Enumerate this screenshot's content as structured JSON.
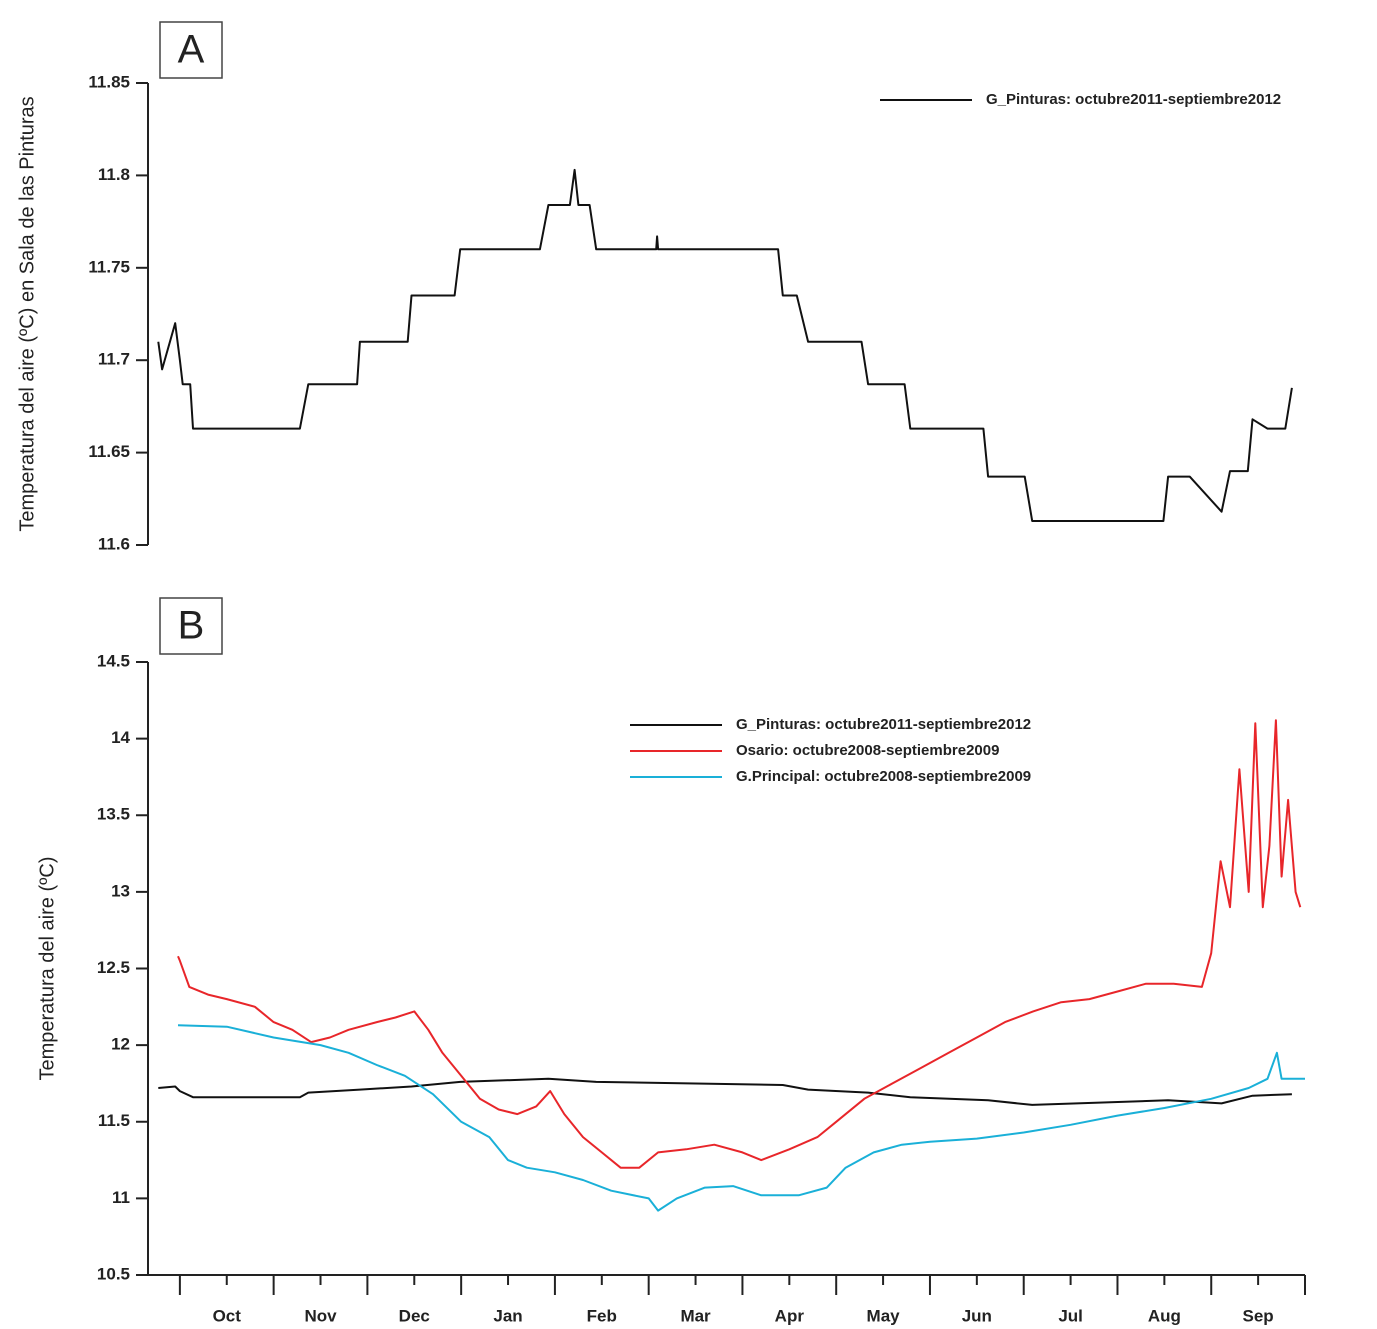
{
  "chart_data": [
    {
      "type": "line",
      "panel_label": "A",
      "y_label": "Temperatura del aire (ºC) en Sala de las Pinturas",
      "xlim": [
        -0.34,
        12
      ],
      "ylim": [
        11.6,
        11.85
      ],
      "yticks": [
        11.6,
        11.65,
        11.7,
        11.75,
        11.8,
        11.85
      ],
      "series": [
        {
          "name": "G_Pinturas: octubre2011-septiembre2012",
          "color": "#111111",
          "x": [
            -0.23,
            -0.19,
            -0.05,
            0,
            0.03,
            0.11,
            0.14,
            1.28,
            1.37,
            1.89,
            1.92,
            2.43,
            2.47,
            2.93,
            2.99,
            3.84,
            3.93,
            4.16,
            4.21,
            4.25,
            4.37,
            4.44,
            5.08,
            5.09,
            5.1,
            6.38,
            6.43,
            6.58,
            6.7,
            7.27,
            7.34,
            7.73,
            7.79,
            8.57,
            8.62,
            9.01,
            9.09,
            10.49,
            10.54,
            10.77,
            11.11,
            11.2,
            11.39,
            11.44,
            11.6,
            11.79,
            11.86
          ],
          "values": [
            11.71,
            11.695,
            11.72,
            11.7,
            11.687,
            11.687,
            11.663,
            11.663,
            11.687,
            11.687,
            11.71,
            11.71,
            11.735,
            11.735,
            11.76,
            11.76,
            11.784,
            11.784,
            11.803,
            11.784,
            11.784,
            11.76,
            11.76,
            11.767,
            11.76,
            11.76,
            11.735,
            11.735,
            11.71,
            11.71,
            11.687,
            11.687,
            11.663,
            11.663,
            11.637,
            11.637,
            11.613,
            11.613,
            11.637,
            11.637,
            11.618,
            11.64,
            11.64,
            11.668,
            11.663,
            11.663,
            11.685
          ]
        }
      ]
    },
    {
      "type": "line",
      "panel_label": "B",
      "y_label": "Temperatura del aire (ºC)",
      "xlim": [
        -0.34,
        12
      ],
      "ylim": [
        10.5,
        14.5
      ],
      "yticks": [
        10.5,
        11,
        11.5,
        12,
        12.5,
        13,
        13.5,
        14,
        14.5
      ],
      "xminor_ticks": [
        0,
        1,
        2,
        3,
        4,
        5,
        6,
        7,
        8,
        9,
        10,
        11,
        12
      ],
      "xticks": [
        {
          "value": 0.5,
          "label": "Oct"
        },
        {
          "value": 1.5,
          "label": "Nov"
        },
        {
          "value": 2.5,
          "label": "Dec"
        },
        {
          "value": 3.5,
          "label": "Jan"
        },
        {
          "value": 4.5,
          "label": "Feb"
        },
        {
          "value": 5.5,
          "label": "Mar"
        },
        {
          "value": 6.5,
          "label": "Apr"
        },
        {
          "value": 7.5,
          "label": "May"
        },
        {
          "value": 8.5,
          "label": "Jun"
        },
        {
          "value": 9.5,
          "label": "Jul"
        },
        {
          "value": 10.5,
          "label": "Aug"
        },
        {
          "value": 11.5,
          "label": "Sep"
        }
      ],
      "series": [
        {
          "name": "G_Pinturas: octubre2011-septiembre2012",
          "color": "#111111",
          "x": [
            -0.23,
            -0.05,
            0,
            0.14,
            1.28,
            1.37,
            1.92,
            2.47,
            2.99,
            3.93,
            4.44,
            6.43,
            6.7,
            7.34,
            7.79,
            8.62,
            9.09,
            10.54,
            11.11,
            11.44,
            11.86
          ],
          "values": [
            11.72,
            11.73,
            11.7,
            11.66,
            11.66,
            11.69,
            11.71,
            11.73,
            11.76,
            11.78,
            11.76,
            11.74,
            11.71,
            11.69,
            11.66,
            11.64,
            11.61,
            11.64,
            11.62,
            11.67,
            11.68
          ]
        },
        {
          "name": "Osario: octubre2008-septiembre2009",
          "color": "#e8262a",
          "x": [
            -0.02,
            0,
            0.1,
            0.3,
            0.5,
            0.8,
            1,
            1.2,
            1.4,
            1.6,
            1.8,
            2.1,
            2.3,
            2.5,
            2.65,
            2.8,
            3,
            3.2,
            3.4,
            3.6,
            3.8,
            3.95,
            4.1,
            4.3,
            4.5,
            4.7,
            4.9,
            5.1,
            5.4,
            5.7,
            6,
            6.2,
            6.5,
            6.8,
            7,
            7.3,
            7.6,
            7.9,
            8.2,
            8.5,
            8.8,
            9.1,
            9.4,
            9.7,
            10,
            10.3,
            10.6,
            10.9,
            11,
            11.1,
            11.2,
            11.3,
            11.4,
            11.47,
            11.55,
            11.62,
            11.69,
            11.75,
            11.82,
            11.9,
            11.95
          ],
          "values": [
            12.58,
            12.55,
            12.38,
            12.33,
            12.3,
            12.25,
            12.15,
            12.1,
            12.02,
            12.05,
            12.1,
            12.15,
            12.18,
            12.22,
            12.1,
            11.95,
            11.8,
            11.65,
            11.58,
            11.55,
            11.6,
            11.7,
            11.55,
            11.4,
            11.3,
            11.2,
            11.2,
            11.3,
            11.32,
            11.35,
            11.3,
            11.25,
            11.32,
            11.4,
            11.5,
            11.65,
            11.75,
            11.85,
            11.95,
            12.05,
            12.15,
            12.22,
            12.28,
            12.3,
            12.35,
            12.4,
            12.4,
            12.38,
            12.6,
            13.2,
            12.9,
            13.8,
            13.0,
            14.1,
            12.9,
            13.3,
            14.12,
            13.1,
            13.6,
            13.0,
            12.9
          ]
        },
        {
          "name": "G.Principal: octubre2008-septiembre2009",
          "color": "#1ab0d8",
          "x": [
            -0.02,
            0.5,
            1,
            1.5,
            1.8,
            2.1,
            2.4,
            2.7,
            3,
            3.3,
            3.5,
            3.7,
            4,
            4.3,
            4.6,
            5,
            5.1,
            5.3,
            5.6,
            5.9,
            6.2,
            6.6,
            6.9,
            7.1,
            7.4,
            7.7,
            8,
            8.5,
            9,
            9.5,
            10,
            10.5,
            11,
            11.4,
            11.6,
            11.7,
            11.75,
            12
          ],
          "values": [
            12.13,
            12.12,
            12.05,
            12.0,
            11.95,
            11.87,
            11.8,
            11.68,
            11.5,
            11.4,
            11.25,
            11.2,
            11.17,
            11.12,
            11.05,
            11.0,
            10.92,
            11.0,
            11.07,
            11.08,
            11.02,
            11.02,
            11.07,
            11.2,
            11.3,
            11.35,
            11.37,
            11.39,
            11.43,
            11.48,
            11.54,
            11.59,
            11.65,
            11.72,
            11.78,
            11.95,
            11.78,
            11.78
          ]
        }
      ]
    }
  ]
}
